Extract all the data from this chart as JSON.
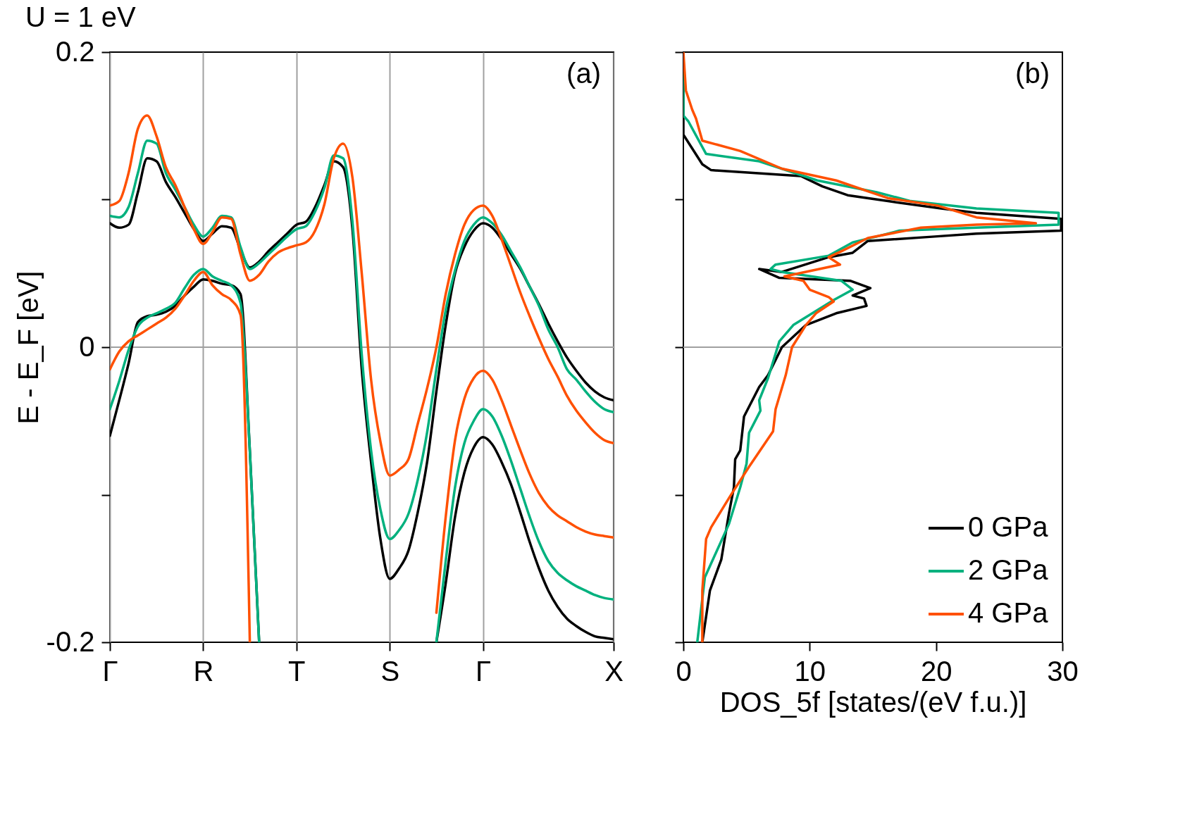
{
  "chart_data": [
    {
      "type": "line",
      "title": "U = 1 eV",
      "ylabel": "E - E_F [eV]",
      "annotations": [
        "(a)"
      ],
      "categories": [
        "Γ",
        null,
        null,
        null,
        null,
        null,
        null,
        null,
        null,
        null,
        "R",
        null,
        null,
        null,
        null,
        null,
        null,
        null,
        null,
        null,
        "T",
        null,
        null,
        null,
        null,
        null,
        null,
        null,
        null,
        null,
        "S",
        null,
        null,
        null,
        null,
        null,
        null,
        null,
        null,
        null,
        "Γ",
        null,
        null,
        null,
        null,
        null,
        null,
        null,
        null,
        null,
        null,
        null,
        null,
        null,
        "X"
      ],
      "ylim": [
        -0.2,
        0.2
      ],
      "yticks": [
        0.2,
        {
          "value": 0.1,
          "label": null
        },
        0,
        {
          "value": -0.1,
          "label": null
        },
        -0.2
      ],
      "grid": "x",
      "ref_lines": [
        {
          "axis": "y",
          "value": 0,
          "color": "#a0a0a0"
        }
      ],
      "legend": false,
      "series": [
        {
          "color": "#000000",
          "values": [
            0.084,
            0.081,
            0.083,
            0.105,
            0.128,
            0.126,
            0.112,
            0.102,
            0.091,
            0.08,
            0.072,
            0.077,
            0.082,
            0.081,
            0.066,
            0.054,
            0.058,
            0.065,
            0.071,
            0.077,
            0.083,
            0.085,
            0.095,
            0.11,
            0.126,
            0.122,
            0.08,
            -0.015,
            -0.078,
            -0.13,
            -0.157,
            -0.15,
            -0.138,
            -0.112,
            -0.078,
            -0.03,
            0.015,
            0.05,
            0.068,
            0.079,
            0.084,
            0.081,
            0.073,
            0.063,
            0.053,
            0.041,
            0.029,
            0.016,
            0.004,
            -0.007,
            -0.016,
            -0.024,
            -0.03,
            -0.034,
            -0.036
          ]
        },
        {
          "color": "#000000",
          "values": [
            -0.06,
            -0.036,
            -0.011,
            0.017,
            0.021,
            0.022,
            0.024,
            0.028,
            0.035,
            0.041,
            0.046,
            0.045,
            0.043,
            0.042,
            0.036,
            -0.07,
            -0.2,
            null,
            null,
            null,
            null,
            null,
            null,
            null,
            null,
            null,
            null,
            null,
            null,
            null,
            null,
            null,
            null,
            null,
            null,
            null,
            null,
            null,
            null,
            null,
            null,
            null,
            null,
            null,
            null,
            null,
            null,
            null,
            null,
            null,
            null,
            null,
            null,
            null,
            null
          ]
        },
        {
          "color": "#000000",
          "values": [
            null,
            null,
            null,
            null,
            null,
            null,
            null,
            null,
            null,
            null,
            null,
            null,
            null,
            null,
            null,
            null,
            null,
            null,
            null,
            null,
            null,
            null,
            null,
            null,
            null,
            null,
            null,
            null,
            null,
            null,
            null,
            null,
            null,
            null,
            null,
            -0.2,
            -0.16,
            -0.115,
            -0.085,
            -0.068,
            -0.061,
            -0.066,
            -0.078,
            -0.093,
            -0.112,
            -0.132,
            -0.15,
            -0.165,
            -0.176,
            -0.184,
            -0.189,
            -0.193,
            -0.196,
            -0.197,
            -0.198
          ]
        },
        {
          "color": "#00b17e",
          "values": [
            0.089,
            0.088,
            0.095,
            0.118,
            0.14,
            0.138,
            0.118,
            0.107,
            0.095,
            0.083,
            0.075,
            0.081,
            0.089,
            0.088,
            0.068,
            0.053,
            0.057,
            0.063,
            0.069,
            0.075,
            0.08,
            0.082,
            0.092,
            0.108,
            0.13,
            0.128,
            0.085,
            -0.005,
            -0.07,
            -0.11,
            -0.13,
            -0.124,
            -0.113,
            -0.09,
            -0.058,
            -0.015,
            0.025,
            0.052,
            0.072,
            0.083,
            0.088,
            0.084,
            0.076,
            0.065,
            0.054,
            0.041,
            0.028,
            0.012,
            0.0,
            -0.015,
            -0.022,
            -0.03,
            -0.037,
            -0.042,
            -0.044
          ]
        },
        {
          "color": "#00b17e",
          "values": [
            -0.042,
            -0.023,
            -0.002,
            0.014,
            0.02,
            0.023,
            0.026,
            0.03,
            0.04,
            0.049,
            0.053,
            0.048,
            0.045,
            0.042,
            0.03,
            -0.07,
            -0.2,
            null,
            null,
            null,
            null,
            null,
            null,
            null,
            null,
            null,
            null,
            null,
            null,
            null,
            null,
            null,
            null,
            null,
            null,
            null,
            null,
            null,
            null,
            null,
            null,
            null,
            null,
            null,
            null,
            null,
            null,
            null,
            null,
            null,
            null,
            null,
            null,
            null,
            null
          ]
        },
        {
          "color": "#00b17e",
          "values": [
            null,
            null,
            null,
            null,
            null,
            null,
            null,
            null,
            null,
            null,
            null,
            null,
            null,
            null,
            null,
            null,
            null,
            null,
            null,
            null,
            null,
            null,
            null,
            null,
            null,
            null,
            null,
            null,
            null,
            null,
            null,
            null,
            null,
            null,
            null,
            -0.2,
            -0.145,
            -0.095,
            -0.065,
            -0.05,
            -0.042,
            -0.047,
            -0.06,
            -0.077,
            -0.096,
            -0.115,
            -0.132,
            -0.145,
            -0.153,
            -0.158,
            -0.162,
            -0.165,
            -0.168,
            -0.17,
            -0.171
          ]
        },
        {
          "color": "#ff5000",
          "values": [
            0.096,
            0.099,
            0.118,
            0.148,
            0.157,
            0.143,
            0.122,
            0.11,
            0.095,
            0.08,
            0.07,
            0.078,
            0.088,
            0.087,
            0.063,
            0.045,
            0.049,
            0.058,
            0.064,
            0.067,
            0.069,
            0.071,
            0.079,
            0.097,
            0.128,
            0.138,
            0.115,
            0.05,
            -0.022,
            -0.064,
            -0.087,
            -0.083,
            -0.076,
            -0.052,
            -0.028,
            0.0,
            0.036,
            0.063,
            0.083,
            0.093,
            0.096,
            0.089,
            0.073,
            0.055,
            0.037,
            0.021,
            0.006,
            -0.008,
            -0.02,
            -0.033,
            -0.043,
            -0.051,
            -0.058,
            -0.063,
            -0.065
          ]
        },
        {
          "color": "#ff5000",
          "values": [
            -0.015,
            -0.003,
            0.004,
            0.008,
            0.012,
            0.016,
            0.02,
            0.026,
            0.035,
            0.045,
            0.051,
            0.042,
            0.036,
            0.032,
            0.022,
            -0.2,
            null,
            null,
            null,
            null,
            null,
            null,
            null,
            null,
            null,
            null,
            null,
            null,
            null,
            null,
            null,
            null,
            null,
            null,
            null,
            null,
            null,
            null,
            null,
            null,
            null,
            null,
            null,
            null,
            null,
            null,
            null,
            null,
            null,
            null,
            null,
            null,
            null,
            null,
            null
          ]
        },
        {
          "color": "#ff5000",
          "values": [
            null,
            null,
            null,
            null,
            null,
            null,
            null,
            null,
            null,
            null,
            null,
            null,
            null,
            null,
            null,
            null,
            null,
            null,
            null,
            null,
            null,
            null,
            null,
            null,
            null,
            null,
            null,
            null,
            null,
            null,
            null,
            null,
            null,
            null,
            null,
            -0.18,
            -0.115,
            -0.063,
            -0.035,
            -0.021,
            -0.016,
            -0.022,
            -0.036,
            -0.053,
            -0.07,
            -0.086,
            -0.099,
            -0.108,
            -0.114,
            -0.118,
            -0.122,
            -0.125,
            -0.127,
            -0.128,
            -0.129
          ]
        }
      ]
    },
    {
      "type": "line",
      "xlabel": "DOS_5f [states/(eV f.u.)]",
      "annotations": [
        "(b)"
      ],
      "xlim": [
        0,
        30
      ],
      "ylim": [
        -0.2,
        0.2
      ],
      "xticks": [
        0,
        10,
        20,
        30
      ],
      "yticks": [
        {
          "value": 0.2,
          "label": null
        },
        {
          "value": 0.1,
          "label": null
        },
        {
          "value": 0,
          "label": null
        },
        {
          "value": -0.1,
          "label": null
        },
        {
          "value": -0.2,
          "label": null
        }
      ],
      "tick_labels": "x",
      "ref_lines": [
        {
          "axis": "y",
          "value": 0,
          "color": "#a0a0a0"
        }
      ],
      "legend": "bottom right",
      "series": [
        {
          "name": "0 GPa",
          "color": "#000000",
          "x": [
            0,
            0,
            1.5,
            2.2,
            9.3,
            11.0,
            13.0,
            16.2,
            20.4,
            23.2,
            29.9,
            29.9,
            23.2,
            19.9,
            14.6,
            13.4,
            11.5,
            7.8,
            6.0,
            7.6,
            13.2,
            14.8,
            13.4,
            14.3,
            14.5,
            12.1,
            9.7,
            7.8,
            6.7,
            6.0,
            4.8,
            4.5,
            4.1,
            4.0,
            3.6,
            3.0,
            2.1,
            1.5
          ],
          "values": [
            0.2,
            0.144,
            0.124,
            0.12,
            0.116,
            0.109,
            0.103,
            0.099,
            0.094,
            0.091,
            0.087,
            0.079,
            0.077,
            0.075,
            0.072,
            0.064,
            0.061,
            0.051,
            0.053,
            0.047,
            0.045,
            0.04,
            0.035,
            0.033,
            0.028,
            0.023,
            0.015,
            0.0,
            -0.019,
            -0.027,
            -0.047,
            -0.07,
            -0.076,
            -0.095,
            -0.113,
            -0.144,
            -0.165,
            -0.2
          ]
        },
        {
          "name": "2 GPa",
          "color": "#00b17e",
          "x": [
            0,
            0,
            0.4,
            1.8,
            6.0,
            10.6,
            15.3,
            18.0,
            23.2,
            29.7,
            29.7,
            23.2,
            17.1,
            15.3,
            13.4,
            11.5,
            7.3,
            6.9,
            7.8,
            12.5,
            13.4,
            11.9,
            8.7,
            7.6,
            6.7,
            6.0,
            6.1,
            5.2,
            5.0,
            4.5,
            3.6,
            1.7,
            1.1
          ],
          "values": [
            0.2,
            0.157,
            0.153,
            0.131,
            0.126,
            0.113,
            0.105,
            0.099,
            0.094,
            0.091,
            0.083,
            0.081,
            0.079,
            0.075,
            0.071,
            0.062,
            0.056,
            0.053,
            0.051,
            0.045,
            0.039,
            0.032,
            0.015,
            0.004,
            -0.021,
            -0.036,
            -0.043,
            -0.058,
            -0.079,
            -0.095,
            -0.12,
            -0.156,
            -0.2
          ]
        },
        {
          "name": "4 GPa",
          "color": "#ff5000",
          "x": [
            0,
            0.2,
            0.7,
            1.0,
            1.5,
            4.5,
            7.8,
            12.1,
            16.2,
            20.1,
            23.2,
            27.9,
            23.2,
            18.8,
            14.6,
            12.5,
            11.5,
            12.4,
            8.0,
            9.5,
            10.0,
            11.5,
            11.9,
            10.5,
            9.7,
            8.6,
            8.1,
            7.3,
            7.1,
            5.2,
            3.7,
            2.2,
            1.8,
            1.5,
            1.5
          ],
          "values": [
            0.2,
            0.174,
            0.161,
            0.155,
            0.14,
            0.133,
            0.121,
            0.113,
            0.101,
            0.096,
            0.088,
            0.084,
            0.083,
            0.081,
            0.074,
            0.065,
            0.061,
            0.056,
            0.048,
            0.045,
            0.039,
            0.034,
            0.031,
            0.023,
            0.015,
            0.0,
            -0.019,
            -0.042,
            -0.057,
            -0.081,
            -0.101,
            -0.122,
            -0.13,
            -0.165,
            -0.2
          ]
        }
      ]
    }
  ]
}
